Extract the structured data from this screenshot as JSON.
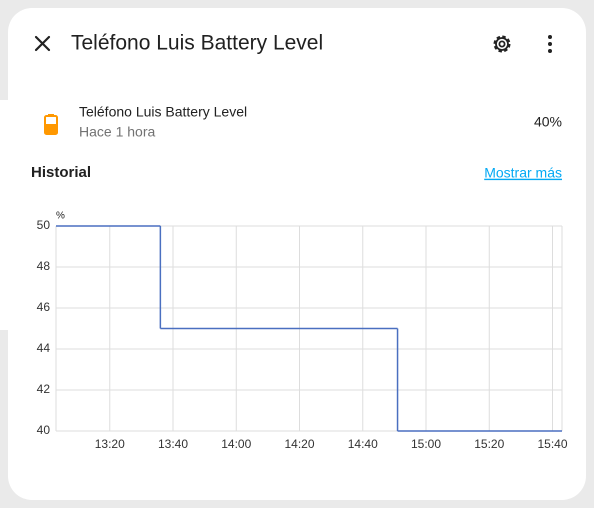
{
  "dialog": {
    "title": "Teléfono Luis Battery Level"
  },
  "entity": {
    "name": "Teléfono Luis Battery Level",
    "last_changed": "Hace 1 hora",
    "state": "40%"
  },
  "history": {
    "title": "Historial",
    "link": "Mostrar más"
  },
  "chart_data": {
    "type": "step",
    "unit": "%",
    "x": [
      "13:03",
      "13:36",
      "14:51"
    ],
    "values": [
      50,
      45,
      40
    ],
    "color": "#4a6fc0",
    "xlim": [
      "13:03",
      "15:43"
    ],
    "xticks": [
      "13:20",
      "13:40",
      "14:00",
      "14:20",
      "14:40",
      "15:00",
      "15:20",
      "15:40"
    ],
    "ylim": [
      40,
      50
    ],
    "yticks": [
      40,
      42,
      44,
      46,
      48,
      50
    ],
    "grid": true
  }
}
